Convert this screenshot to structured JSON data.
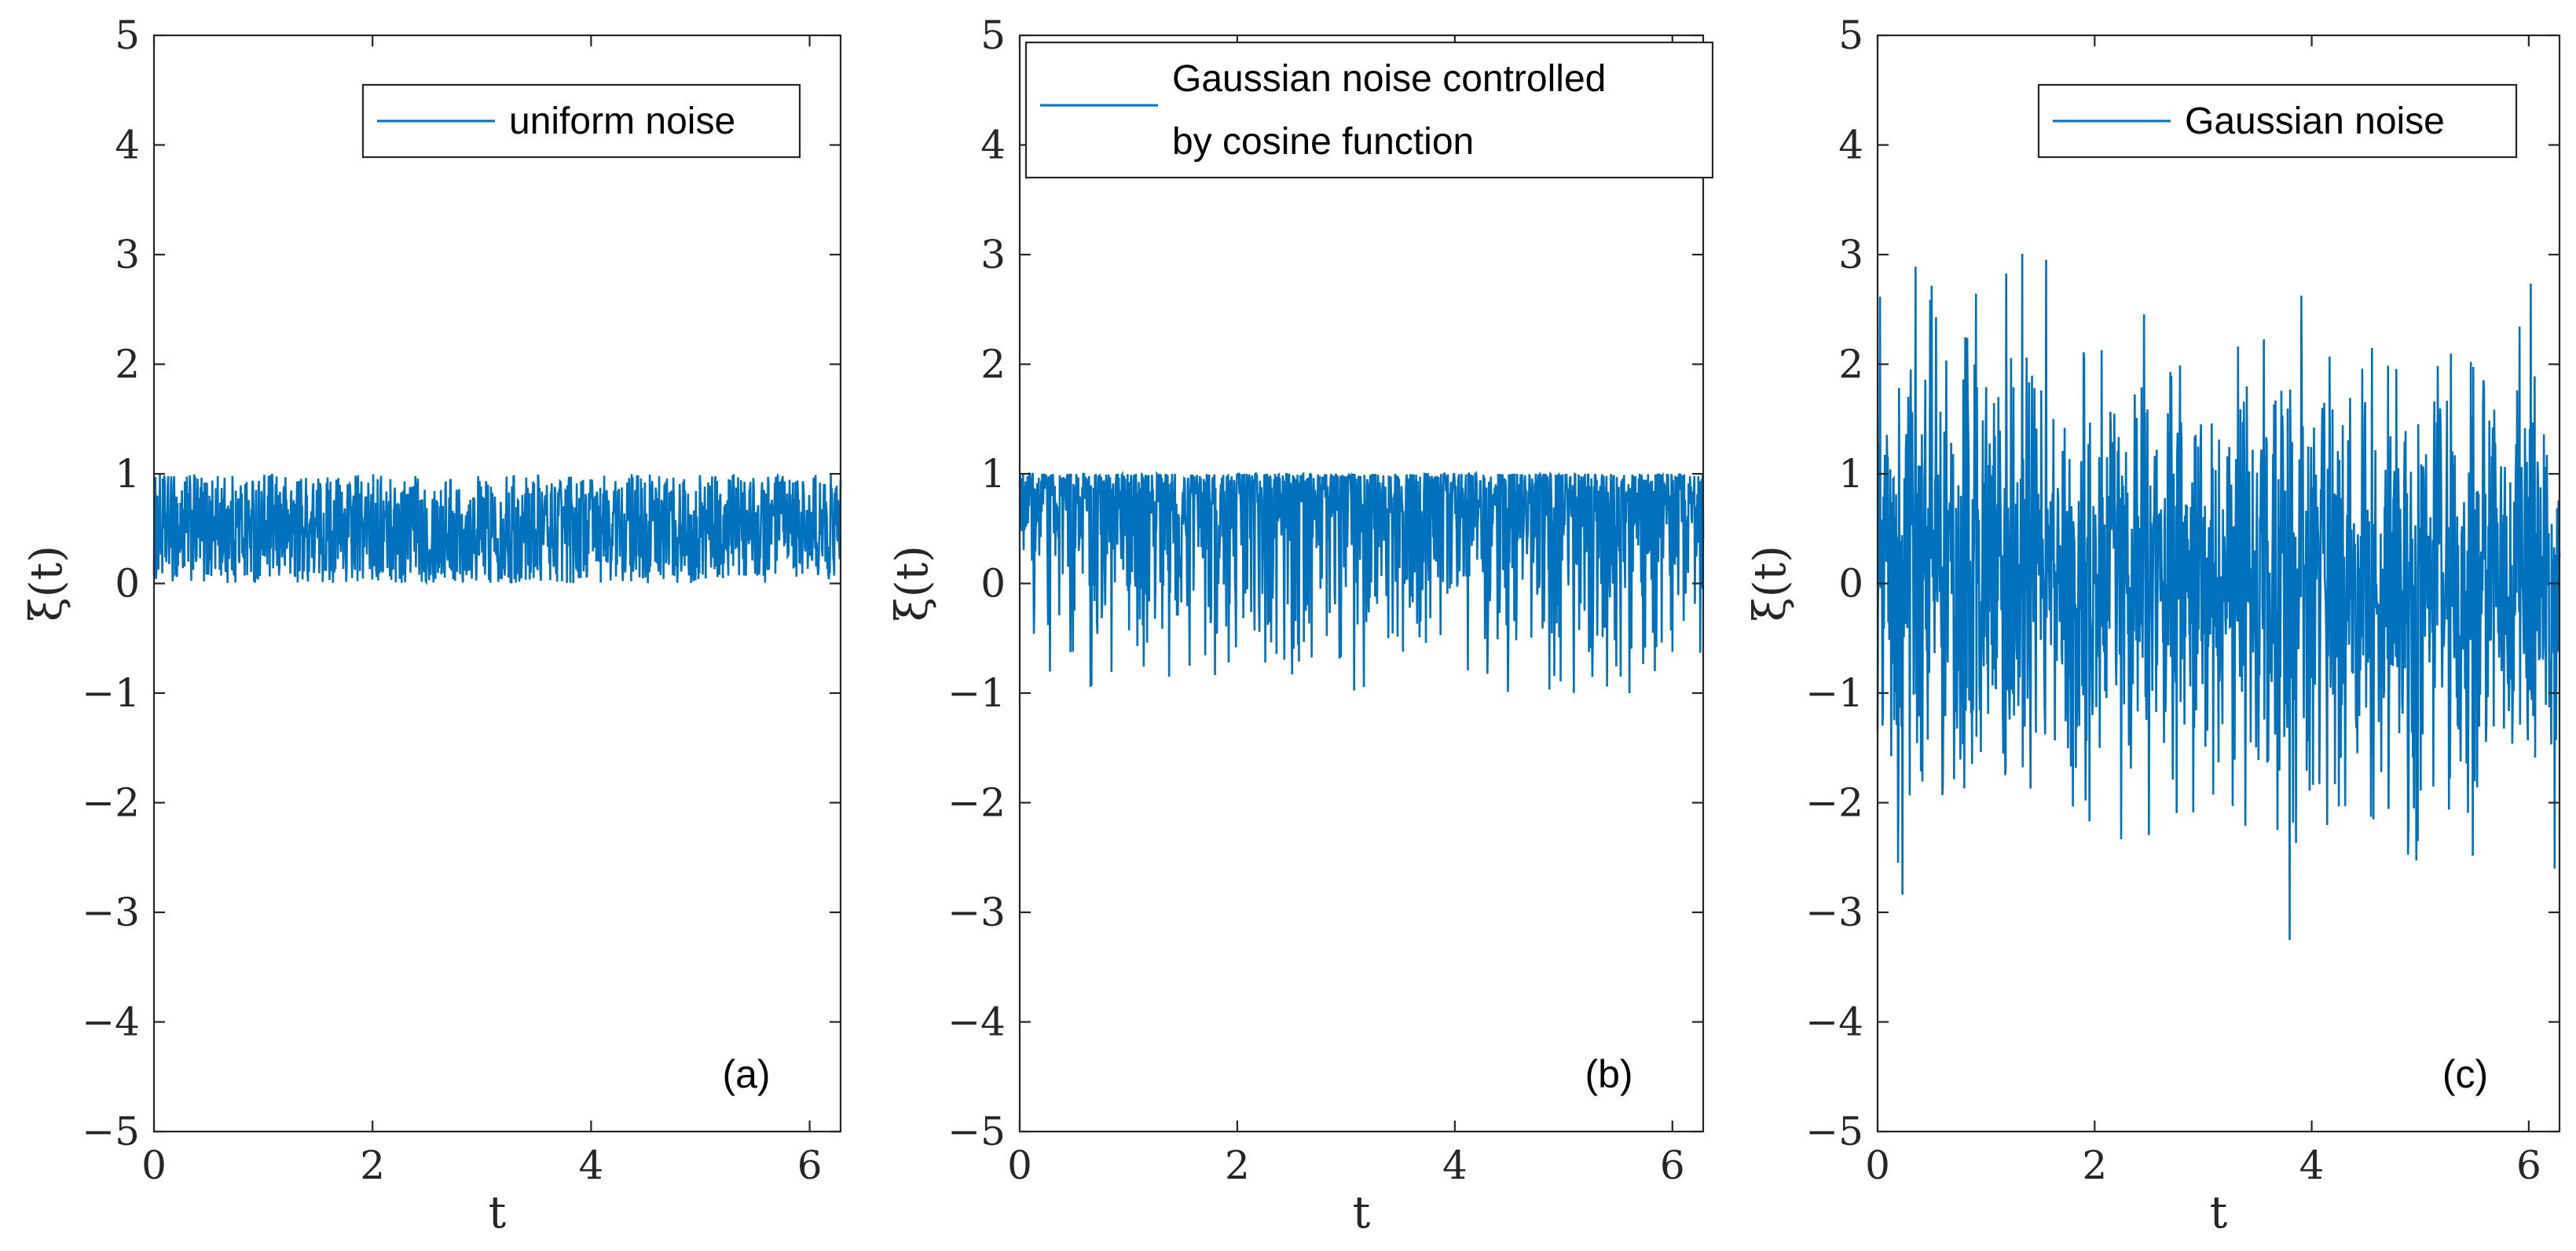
{
  "chart_data": [
    {
      "type": "line",
      "panel_label": "(a)",
      "xlabel": "t",
      "ylabel": "ξ(t)",
      "xlim": [
        0,
        6.2832
      ],
      "ylim": [
        -5,
        5
      ],
      "xticks": [
        0,
        2,
        4,
        6
      ],
      "yticks": [
        -5,
        -4,
        -3,
        -2,
        -1,
        0,
        1,
        2,
        3,
        4,
        5
      ],
      "xtick_labels": [
        "0",
        "2",
        "4",
        "6"
      ],
      "ytick_labels": [
        "−5",
        "−4",
        "−3",
        "−2",
        "−1",
        "0",
        "1",
        "2",
        "3",
        "4",
        "5"
      ],
      "legend": {
        "entries": [
          "uniform noise"
        ],
        "position": "top-right"
      },
      "grid": false,
      "series": [
        {
          "name": "uniform noise",
          "color": "#0072BD",
          "distribution": "uniform",
          "range": [
            0,
            1
          ],
          "y_min": 0,
          "y_max": 1
        }
      ]
    },
    {
      "type": "line",
      "panel_label": "(b)",
      "xlabel": "t",
      "ylabel": "ξ(t)",
      "xlim": [
        0,
        6.2832
      ],
      "ylim": [
        -5,
        5
      ],
      "xticks": [
        0,
        2,
        4,
        6
      ],
      "yticks": [
        -5,
        -4,
        -3,
        -2,
        -1,
        0,
        1,
        2,
        3,
        4,
        5
      ],
      "xtick_labels": [
        "0",
        "2",
        "4",
        "6"
      ],
      "ytick_labels": [
        "−5",
        "−4",
        "−3",
        "−2",
        "−1",
        "0",
        "1",
        "2",
        "3",
        "4",
        "5"
      ],
      "legend": {
        "entries": [
          "Gaussian noise controlled",
          "by cosine function"
        ],
        "position": "top-right"
      },
      "grid": false,
      "series": [
        {
          "name": "Gaussian noise controlled by cosine function",
          "color": "#0072BD",
          "distribution": "cos(gaussian)",
          "y_min": -1,
          "y_max": 1
        }
      ]
    },
    {
      "type": "line",
      "panel_label": "(c)",
      "xlabel": "t",
      "ylabel": "ξ(t)",
      "xlim": [
        0,
        6.2832
      ],
      "ylim": [
        -5,
        5
      ],
      "xticks": [
        0,
        2,
        4,
        6
      ],
      "yticks": [
        -5,
        -4,
        -3,
        -2,
        -1,
        0,
        1,
        2,
        3,
        4,
        5
      ],
      "xtick_labels": [
        "0",
        "2",
        "4",
        "6"
      ],
      "ytick_labels": [
        "−5",
        "−4",
        "−3",
        "−2",
        "−1",
        "0",
        "1",
        "2",
        "3",
        "4",
        "5"
      ],
      "legend": {
        "entries": [
          "Gaussian noise"
        ],
        "position": "top-right"
      },
      "grid": false,
      "series": [
        {
          "name": "Gaussian noise",
          "color": "#0072BD",
          "distribution": "gaussian",
          "mean": 0,
          "std": 1,
          "y_min": -3.9,
          "y_max": 3.4
        }
      ]
    }
  ]
}
